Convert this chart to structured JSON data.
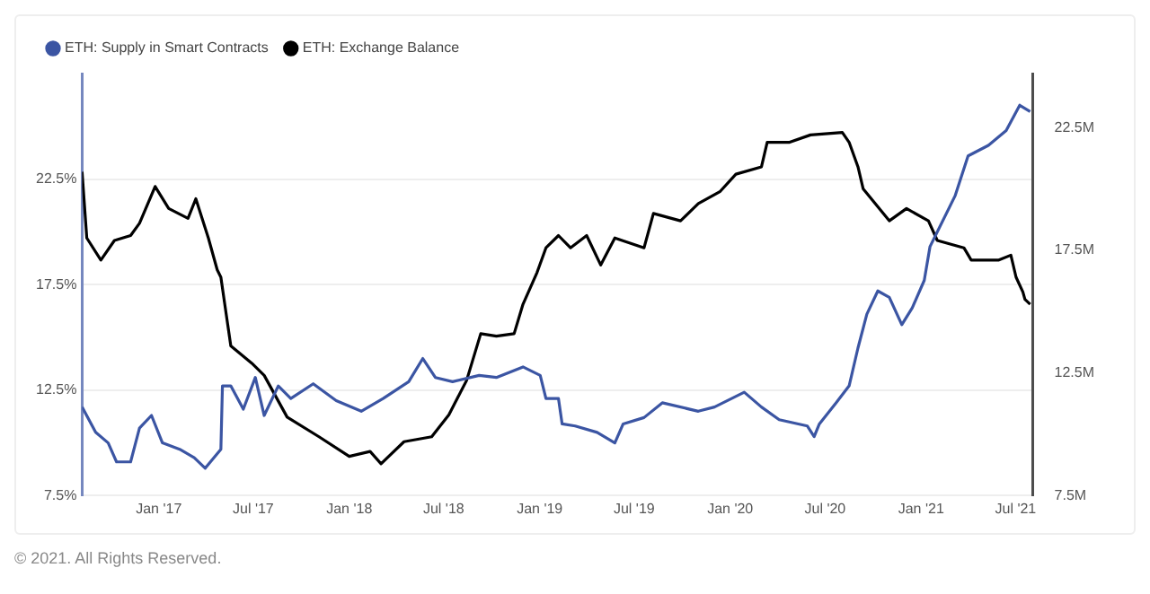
{
  "chart_data": {
    "type": "line",
    "annotations": [
      "© 2021. All Rights Reserved."
    ],
    "xlim": [
      "2016-08-07",
      "2021-08-03"
    ],
    "xticks": [
      {
        "value": "2017-01-01",
        "label": "Jan '17"
      },
      {
        "value": "2017-07-01",
        "label": "Jul '17"
      },
      {
        "value": "2018-01-01",
        "label": "Jan '18"
      },
      {
        "value": "2018-07-01",
        "label": "Jul '18"
      },
      {
        "value": "2019-01-01",
        "label": "Jan '19"
      },
      {
        "value": "2019-07-01",
        "label": "Jul '19"
      },
      {
        "value": "2020-01-01",
        "label": "Jan '20"
      },
      {
        "value": "2020-07-01",
        "label": "Jul '20"
      },
      {
        "value": "2021-01-01",
        "label": "Jan '21"
      },
      {
        "value": "2021-07-01",
        "label": "Jul '21"
      }
    ],
    "ylim": [
      7.5,
      27.5
    ],
    "yticks": [
      {
        "value": 7.5,
        "label": "7.5%"
      },
      {
        "value": 12.5,
        "label": "12.5%"
      },
      {
        "value": 17.5,
        "label": "17.5%"
      },
      {
        "value": 22.5,
        "label": "22.5%"
      }
    ],
    "y2lim": [
      7.5,
      24.7
    ],
    "y2ticks": [
      {
        "value": 7.5,
        "label": "7.5M"
      },
      {
        "value": 12.5,
        "label": "12.5M"
      },
      {
        "value": 17.5,
        "label": "17.5M"
      },
      {
        "value": 22.5,
        "label": "22.5M"
      }
    ],
    "grid": "y",
    "legend": "top left",
    "marker": "none",
    "line_style": "solid",
    "series": [
      {
        "name": "ETH: Supply in Smart Contracts",
        "color": "#3b55a3",
        "x": [
          "2016-08-07",
          "2016-09-02",
          "2016-09-26",
          "2016-10-12",
          "2016-11-08",
          "2016-11-25",
          "2016-12-18",
          "2017-01-08",
          "2017-02-10",
          "2017-03-10",
          "2017-03-31",
          "2017-04-30",
          "2017-05-03",
          "2017-05-19",
          "2017-06-12",
          "2017-07-05",
          "2017-07-22",
          "2017-08-18",
          "2017-09-11",
          "2017-10-24",
          "2017-12-07",
          "2018-01-24",
          "2018-03-07",
          "2018-04-25",
          "2018-05-22",
          "2018-06-15",
          "2018-07-18",
          "2018-09-07",
          "2018-10-10",
          "2018-11-30",
          "2019-01-02",
          "2019-01-13",
          "2019-02-06",
          "2019-02-13",
          "2019-03-10",
          "2019-04-21",
          "2019-05-25",
          "2019-06-10",
          "2019-07-20",
          "2019-08-24",
          "2019-11-01",
          "2019-12-02",
          "2020-01-28",
          "2020-03-01",
          "2020-04-04",
          "2020-05-28",
          "2020-06-10",
          "2020-06-20",
          "2020-07-22",
          "2020-08-16",
          "2020-09-02",
          "2020-09-19",
          "2020-10-10",
          "2020-11-01",
          "2020-11-25",
          "2020-12-15",
          "2021-01-07",
          "2021-01-18",
          "2021-03-07",
          "2021-04-01",
          "2021-05-10",
          "2021-06-13",
          "2021-07-09",
          "2021-07-29"
        ],
        "values": [
          11.7,
          10.5,
          10.0,
          9.1,
          9.1,
          10.7,
          11.3,
          10.0,
          9.7,
          9.3,
          8.8,
          9.7,
          12.7,
          12.7,
          11.6,
          13.1,
          11.3,
          12.7,
          12.1,
          12.8,
          12.0,
          11.5,
          12.1,
          12.9,
          14.0,
          13.1,
          12.9,
          13.2,
          13.1,
          13.6,
          13.2,
          12.1,
          12.1,
          10.9,
          10.8,
          10.5,
          10.0,
          10.9,
          11.2,
          11.9,
          11.5,
          11.7,
          12.4,
          11.7,
          11.1,
          10.8,
          10.3,
          10.9,
          11.9,
          12.7,
          14.5,
          16.1,
          17.2,
          16.9,
          15.6,
          16.4,
          17.7,
          19.3,
          21.7,
          23.6,
          24.1,
          24.8,
          26.0,
          25.7
        ]
      },
      {
        "name": "ETH: Exchange Balance",
        "color": "#000000",
        "axis": "y2",
        "x": [
          "2016-08-07",
          "2016-08-16",
          "2016-09-12",
          "2016-10-08",
          "2016-11-08",
          "2016-11-25",
          "2016-12-25",
          "2017-01-20",
          "2017-02-26",
          "2017-03-13",
          "2017-04-06",
          "2017-04-23",
          "2017-04-30",
          "2017-05-19",
          "2017-06-28",
          "2017-07-22",
          "2017-09-04",
          "2017-11-04",
          "2018-01-01",
          "2018-02-10",
          "2018-03-03",
          "2018-04-16",
          "2018-06-08",
          "2018-07-11",
          "2018-08-14",
          "2018-09-10",
          "2018-10-10",
          "2018-11-13",
          "2018-11-30",
          "2018-12-27",
          "2019-01-13",
          "2019-02-06",
          "2019-03-01",
          "2019-04-01",
          "2019-04-28",
          "2019-05-25",
          "2019-07-20",
          "2019-08-07",
          "2019-09-28",
          "2019-11-01",
          "2019-12-13",
          "2020-01-12",
          "2020-03-01",
          "2020-03-12",
          "2020-04-24",
          "2020-06-03",
          "2020-08-03",
          "2020-08-16",
          "2020-09-02",
          "2020-09-12",
          "2020-11-01",
          "2020-12-04",
          "2021-01-15",
          "2021-02-01",
          "2021-03-24",
          "2021-04-07",
          "2021-05-30",
          "2021-06-22",
          "2021-07-02",
          "2021-07-15",
          "2021-07-19",
          "2021-07-29"
        ],
        "values": [
          20.7,
          18.0,
          17.1,
          17.9,
          18.1,
          18.6,
          20.1,
          19.2,
          18.8,
          19.6,
          18.0,
          16.7,
          16.4,
          13.6,
          12.9,
          12.4,
          10.7,
          9.9,
          9.1,
          9.3,
          8.8,
          9.7,
          9.9,
          10.8,
          12.2,
          14.1,
          14.0,
          14.1,
          15.3,
          16.6,
          17.6,
          18.1,
          17.6,
          18.1,
          16.9,
          18.0,
          17.6,
          19.0,
          18.7,
          19.4,
          19.9,
          20.6,
          20.9,
          21.9,
          21.9,
          22.2,
          22.3,
          21.9,
          20.9,
          20.0,
          18.7,
          19.2,
          18.7,
          17.9,
          17.6,
          17.1,
          17.1,
          17.3,
          16.4,
          15.8,
          15.5,
          15.3
        ]
      }
    ]
  }
}
